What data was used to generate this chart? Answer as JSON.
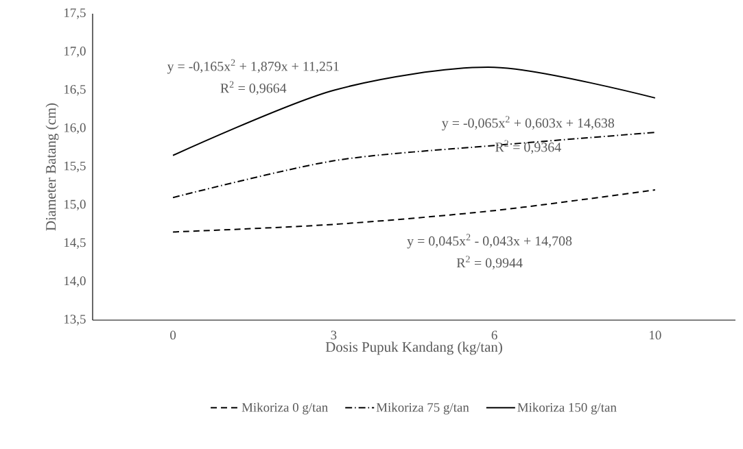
{
  "chart_data": {
    "type": "line",
    "xlabel": "Dosis Pupuk Kandang (kg/tan)",
    "ylabel": "Diameter Batang (cm)",
    "categories": [
      "0",
      "3",
      "6",
      "10"
    ],
    "series": [
      {
        "name": "Mikoriza 0 g/tan",
        "color": "#000000",
        "line_style": "dashed",
        "values": [
          14.65,
          14.75,
          14.93,
          15.2
        ]
      },
      {
        "name": "Mikoriza 75 g/tan",
        "color": "#000000",
        "line_style": "dashdot",
        "values": [
          15.1,
          15.58,
          15.78,
          15.95
        ]
      },
      {
        "name": "Mikoriza 150 g/tan",
        "color": "#000000",
        "line_style": "solid",
        "values": [
          15.65,
          16.5,
          16.8,
          16.4
        ]
      }
    ],
    "ylim": [
      13.5,
      17.5
    ],
    "yticks": [
      {
        "value": 13.5,
        "label": "13,5"
      },
      {
        "value": 14.0,
        "label": "14,0"
      },
      {
        "value": 14.5,
        "label": "14,5"
      },
      {
        "value": 15.0,
        "label": "15,0"
      },
      {
        "value": 15.5,
        "label": "15,5"
      },
      {
        "value": 16.0,
        "label": "16,0"
      },
      {
        "value": 16.5,
        "label": "16,5"
      },
      {
        "value": 17.0,
        "label": "17,0"
      },
      {
        "value": 17.5,
        "label": "17,5"
      }
    ],
    "annotations": [
      "y = -0,165x$^{2}$ + 1,879x + 11,251",
      "R$^{2}$ = 0,9664",
      "y = -0,065x$^{2}$ + 0,603x + 14,638",
      "R$^{2}$ = 0,9364",
      "y = 0,045x$^{2}$ - 0,043x + 14,708",
      "R$^{2}$ = 0,9944"
    ],
    "grid": false,
    "legend": "bottom",
    "marker": "none"
  }
}
